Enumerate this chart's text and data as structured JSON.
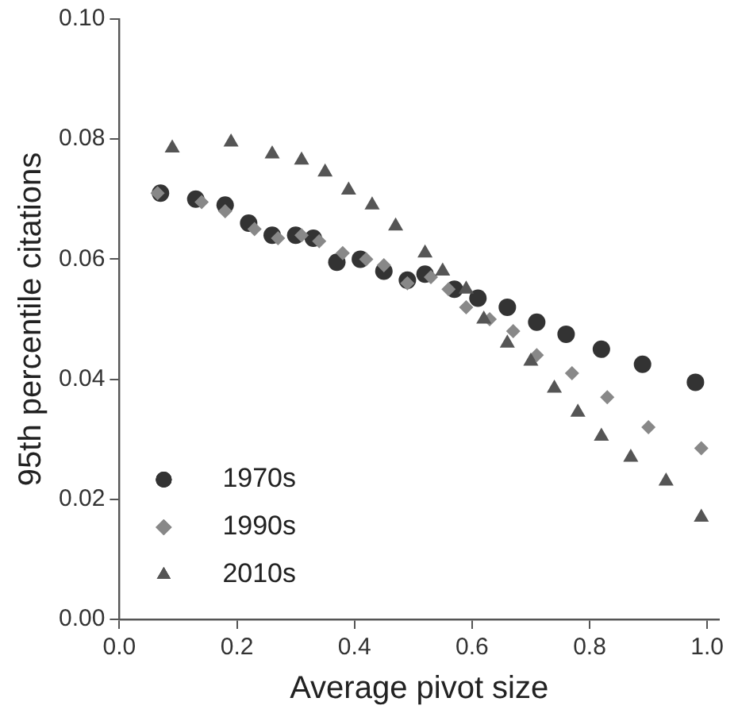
{
  "chart_data": {
    "type": "scatter",
    "xlabel": "Average pivot size",
    "ylabel": "95th percentile citations",
    "xlim": [
      0,
      1.02
    ],
    "ylim": [
      0,
      0.1
    ],
    "xticks": [
      {
        "value": 0,
        "label": "0.0"
      },
      {
        "value": 0.2,
        "label": "0.2"
      },
      {
        "value": 0.4,
        "label": "0.4"
      },
      {
        "value": 0.6,
        "label": "0.6"
      },
      {
        "value": 0.8,
        "label": "0.8"
      },
      {
        "value": 1,
        "label": "1.0"
      }
    ],
    "yticks": [
      {
        "value": 0,
        "label": "0.00"
      },
      {
        "value": 0.02,
        "label": "0.02"
      },
      {
        "value": 0.04,
        "label": "0.04"
      },
      {
        "value": 0.06,
        "label": "0.06"
      },
      {
        "value": 0.08,
        "label": "0.08"
      },
      {
        "value": 0.1,
        "label": "0.10"
      }
    ],
    "grid": false,
    "legend": "bottom left",
    "series": [
      {
        "name": "1970s",
        "color": "#333333",
        "marker": "circle",
        "x": [
          0.07,
          0.13,
          0.18,
          0.22,
          0.26,
          0.3,
          0.33,
          0.37,
          0.41,
          0.45,
          0.49,
          0.52,
          0.57,
          0.61,
          0.66,
          0.71,
          0.76,
          0.82,
          0.89,
          0.98
        ],
        "values": [
          0.071,
          0.07,
          0.069,
          0.066,
          0.064,
          0.064,
          0.0635,
          0.0595,
          0.06,
          0.058,
          0.0565,
          0.0575,
          0.055,
          0.0535,
          0.052,
          0.0495,
          0.0475,
          0.045,
          0.0425,
          0.0395
        ]
      },
      {
        "name": "1990s",
        "color": "#888888",
        "marker": "diamond",
        "x": [
          0.065,
          0.14,
          0.18,
          0.23,
          0.27,
          0.31,
          0.34,
          0.38,
          0.42,
          0.45,
          0.49,
          0.53,
          0.56,
          0.59,
          0.63,
          0.67,
          0.71,
          0.77,
          0.83,
          0.9,
          0.99
        ],
        "values": [
          0.071,
          0.0695,
          0.068,
          0.065,
          0.0635,
          0.064,
          0.063,
          0.061,
          0.06,
          0.059,
          0.056,
          0.057,
          0.055,
          0.052,
          0.05,
          0.048,
          0.044,
          0.041,
          0.037,
          0.032,
          0.0285
        ]
      },
      {
        "name": "2010s",
        "color": "#555555",
        "marker": "triangle",
        "x": [
          0.09,
          0.19,
          0.26,
          0.31,
          0.35,
          0.39,
          0.43,
          0.47,
          0.52,
          0.55,
          0.59,
          0.62,
          0.66,
          0.7,
          0.74,
          0.78,
          0.82,
          0.87,
          0.93,
          0.99
        ],
        "values": [
          0.0785,
          0.0795,
          0.0775,
          0.0765,
          0.0745,
          0.0715,
          0.069,
          0.0655,
          0.061,
          0.058,
          0.055,
          0.05,
          0.046,
          0.043,
          0.0385,
          0.0345,
          0.0305,
          0.027,
          0.023,
          0.017
        ]
      }
    ]
  }
}
